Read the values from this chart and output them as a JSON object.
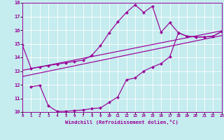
{
  "xlabel": "Windchill (Refroidissement éolien,°C)",
  "bg_color": "#c5ecee",
  "line_color": "#990099",
  "grid_color": "#ffffff",
  "xmin": 0,
  "xmax": 23,
  "ymin": 10,
  "ymax": 18,
  "yticks": [
    10,
    11,
    12,
    13,
    14,
    15,
    16,
    17,
    18
  ],
  "xticks": [
    0,
    1,
    2,
    3,
    4,
    5,
    6,
    7,
    8,
    9,
    10,
    11,
    12,
    13,
    14,
    15,
    16,
    17,
    18,
    19,
    20,
    21,
    22,
    23
  ],
  "line1_x": [
    0,
    1,
    2,
    3,
    4,
    5,
    6,
    7,
    8,
    9,
    10,
    11,
    12,
    13,
    14,
    15,
    16,
    17,
    18,
    19,
    20,
    21,
    22,
    23
  ],
  "line1_y": [
    14.9,
    13.2,
    13.3,
    13.4,
    13.5,
    13.6,
    13.7,
    13.8,
    14.15,
    14.85,
    15.8,
    16.6,
    17.3,
    17.85,
    17.3,
    17.75,
    15.85,
    16.55,
    15.8,
    15.55,
    15.5,
    15.5,
    15.55,
    15.9
  ],
  "line2_x": [
    0,
    23
  ],
  "line2_y": [
    13.05,
    15.95
  ],
  "line3_x": [
    0,
    23
  ],
  "line3_y": [
    12.6,
    15.6
  ],
  "line4_x": [
    1,
    2,
    3,
    4,
    5,
    6,
    7,
    8,
    9,
    10,
    11,
    12,
    13,
    14,
    15,
    16,
    17,
    18,
    19,
    20,
    21,
    22,
    23
  ],
  "line4_y": [
    11.85,
    11.95,
    10.45,
    10.05,
    10.05,
    10.1,
    10.15,
    10.25,
    10.3,
    10.7,
    11.1,
    12.35,
    12.5,
    13.0,
    13.3,
    13.55,
    14.05,
    15.8,
    15.55,
    15.5,
    15.5,
    15.55,
    15.9
  ]
}
